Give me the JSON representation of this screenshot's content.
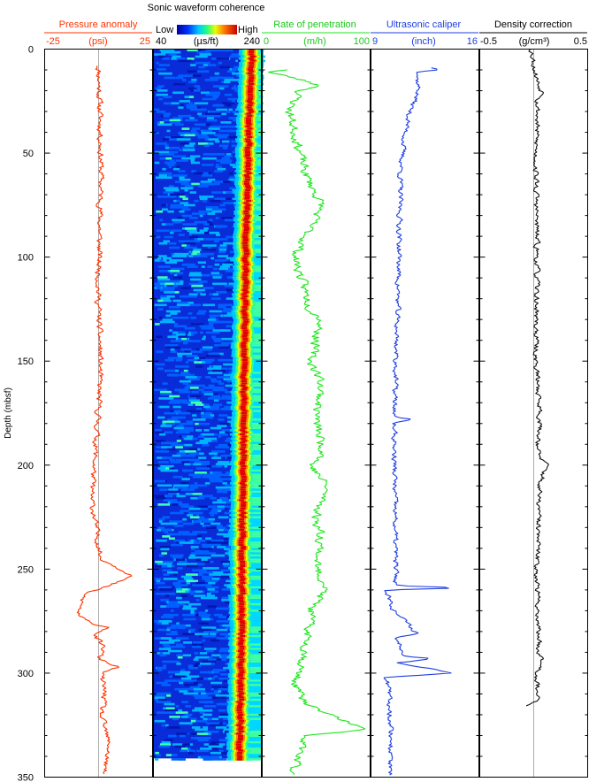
{
  "chart_data": {
    "type": "line",
    "depth_axis": {
      "label": "Depth (mbsf)",
      "range": [
        0,
        350
      ],
      "ticks": [
        "0",
        "50",
        "100",
        "150",
        "200",
        "250",
        "300",
        "350"
      ]
    },
    "tracks": [
      {
        "title": "Pressure anomaly",
        "unit": "(psi)",
        "min_label": "-25",
        "max_label": "25",
        "range": [
          -25,
          25
        ],
        "color": "#ff3300",
        "has_baseline": true,
        "baseline": 0,
        "depth_range": [
          8,
          349
        ],
        "profile": [
          [
            8,
            0.0
          ],
          [
            30,
            0.6
          ],
          [
            60,
            1.2
          ],
          [
            90,
            0.4
          ],
          [
            120,
            -0.2
          ],
          [
            150,
            0.8
          ],
          [
            180,
            -0.5
          ],
          [
            200,
            -2.0
          ],
          [
            215,
            -3.5
          ],
          [
            235,
            -0.5
          ],
          [
            245,
            1.0
          ],
          [
            253,
            16.0
          ],
          [
            258,
            4.0
          ],
          [
            262,
            -7.0
          ],
          [
            268,
            -8.5
          ],
          [
            272,
            -10.0
          ],
          [
            276,
            -4.0
          ],
          [
            278,
            5.0
          ],
          [
            282,
            -2.0
          ],
          [
            288,
            2.5
          ],
          [
            293,
            0.0
          ],
          [
            297,
            9.0
          ],
          [
            300,
            1.0
          ],
          [
            310,
            3.0
          ],
          [
            320,
            1.0
          ],
          [
            335,
            5.0
          ],
          [
            349,
            2.0
          ]
        ],
        "noise": 2.2
      },
      {
        "title": "Sonic waveform coherence",
        "unit": "(µs/ft)",
        "min_label": "40",
        "max_label": "240",
        "range": [
          40,
          240
        ],
        "color_scale": {
          "low_label": "Low",
          "high_label": "High"
        },
        "depth_range": [
          0,
          341
        ],
        "profile": [
          [
            0,
            222
          ],
          [
            50,
            215
          ],
          [
            100,
            210
          ],
          [
            150,
            207
          ],
          [
            200,
            205
          ],
          [
            250,
            203
          ],
          [
            300,
            201
          ],
          [
            341,
            199
          ]
        ]
      },
      {
        "title": "Rate of penetration",
        "unit": "(m/h)",
        "min_label": "0",
        "max_label": "100",
        "range": [
          0,
          100
        ],
        "color": "#1ee61e",
        "has_baseline": false,
        "depth_range": [
          10,
          349
        ],
        "profile": [
          [
            10,
            25
          ],
          [
            11,
            5
          ],
          [
            14,
            30
          ],
          [
            16,
            45
          ],
          [
            18,
            55
          ],
          [
            20,
            35
          ],
          [
            30,
            25
          ],
          [
            60,
            40
          ],
          [
            75,
            55
          ],
          [
            100,
            30
          ],
          [
            125,
            45
          ],
          [
            130,
            55
          ],
          [
            150,
            45
          ],
          [
            160,
            55
          ],
          [
            180,
            50
          ],
          [
            195,
            58
          ],
          [
            200,
            45
          ],
          [
            210,
            60
          ],
          [
            225,
            50
          ],
          [
            235,
            55
          ],
          [
            250,
            50
          ],
          [
            258,
            60
          ],
          [
            270,
            45
          ],
          [
            290,
            40
          ],
          [
            305,
            30
          ],
          [
            315,
            40
          ],
          [
            327,
            95
          ],
          [
            330,
            40
          ],
          [
            345,
            30
          ],
          [
            349,
            25
          ]
        ],
        "noise": 7
      },
      {
        "title": "Ultrasonic caliper",
        "unit": "(inch)",
        "min_label": "9",
        "max_label": "16",
        "range": [
          9,
          16
        ],
        "color": "#1f3fe0",
        "has_baseline": false,
        "depth_range": [
          9,
          349
        ],
        "profile": [
          [
            9,
            13.0
          ],
          [
            10,
            13.5
          ],
          [
            11,
            12.2
          ],
          [
            14,
            12.0
          ],
          [
            20,
            12.1
          ],
          [
            30,
            11.5
          ],
          [
            45,
            11.1
          ],
          [
            60,
            10.9
          ],
          [
            100,
            10.8
          ],
          [
            150,
            10.6
          ],
          [
            177,
            10.5
          ],
          [
            178,
            11.5
          ],
          [
            180,
            10.5
          ],
          [
            200,
            10.5
          ],
          [
            258,
            10.6
          ],
          [
            259,
            15.3
          ],
          [
            260,
            10.0
          ],
          [
            270,
            10.5
          ],
          [
            281,
            12.0
          ],
          [
            283,
            10.6
          ],
          [
            292,
            11.3
          ],
          [
            293,
            13.0
          ],
          [
            295,
            10.8
          ],
          [
            300,
            14.4
          ],
          [
            302,
            10.0
          ],
          [
            315,
            10.2
          ],
          [
            330,
            10.3
          ],
          [
            349,
            10.2
          ]
        ],
        "noise": 0.28
      },
      {
        "title": "Density correction",
        "unit": "(g/cm³)",
        "min_label": "-0.5",
        "max_label": "0.5",
        "range": [
          -0.5,
          0.5
        ],
        "color": "#111111",
        "has_baseline": true,
        "baseline": 0,
        "depth_range": [
          0,
          316
        ],
        "profile": [
          [
            0,
            -0.02
          ],
          [
            10,
            0.01
          ],
          [
            18,
            0.05
          ],
          [
            22,
            0.1
          ],
          [
            25,
            0.04
          ],
          [
            50,
            0.02
          ],
          [
            100,
            0.03
          ],
          [
            150,
            0.02
          ],
          [
            175,
            0.06
          ],
          [
            195,
            0.04
          ],
          [
            200,
            0.12
          ],
          [
            210,
            0.05
          ],
          [
            250,
            0.03
          ],
          [
            290,
            0.05
          ],
          [
            296,
            0.1
          ],
          [
            300,
            0.03
          ],
          [
            312,
            0.04
          ],
          [
            315,
            -0.05
          ],
          [
            316,
            -0.07
          ]
        ],
        "noise": 0.04
      }
    ]
  }
}
